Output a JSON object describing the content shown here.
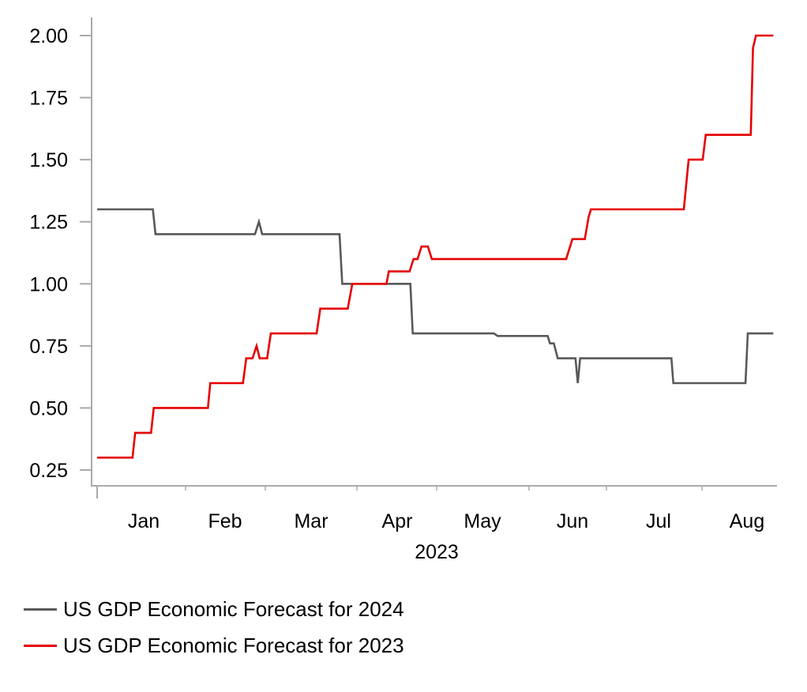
{
  "chart_data": {
    "type": "line",
    "title": "",
    "xlabel": "2023",
    "ylabel": "",
    "ylim": [
      0.25,
      2.0
    ],
    "yticks": [
      "2.00",
      "1.75",
      "1.50",
      "1.25",
      "1.00",
      "0.75",
      "0.50",
      "0.25"
    ],
    "ytick_values": [
      2.0,
      1.75,
      1.5,
      1.25,
      1.0,
      0.75,
      0.5,
      0.25
    ],
    "x_unit": "months since Jan 1 2023",
    "xlim": [
      0,
      7.95
    ],
    "month_boundaries": [
      0,
      1,
      2,
      3,
      4,
      5,
      6,
      7
    ],
    "xtick_labels": [
      "Jan",
      "Feb",
      "Mar",
      "Apr",
      "May",
      "Jun",
      "Jul",
      "Aug"
    ],
    "x_group_label": "2023",
    "grid": false,
    "legend_position": "bottom-left",
    "series": [
      {
        "name": "US GDP Economic Forecast for 2024",
        "color": "#595959",
        "points": [
          [
            0.0,
            1.3
          ],
          [
            0.63,
            1.3
          ],
          [
            0.66,
            1.2
          ],
          [
            1.87,
            1.2
          ],
          [
            1.92,
            1.25
          ],
          [
            1.96,
            1.2
          ],
          [
            2.81,
            1.2
          ],
          [
            2.84,
            1.0
          ],
          [
            3.67,
            1.0
          ],
          [
            3.7,
            0.8
          ],
          [
            4.62,
            0.8
          ],
          [
            4.66,
            0.79
          ],
          [
            5.24,
            0.79
          ],
          [
            5.27,
            0.76
          ],
          [
            5.32,
            0.76
          ],
          [
            5.37,
            0.7
          ],
          [
            5.6,
            0.7
          ],
          [
            5.63,
            0.6
          ],
          [
            5.66,
            0.7
          ],
          [
            6.68,
            0.7
          ],
          [
            6.7,
            0.6
          ],
          [
            7.58,
            0.6
          ],
          [
            7.61,
            0.8
          ],
          [
            7.95,
            0.8
          ]
        ]
      },
      {
        "name": "US GDP Economic Forecast for 2023",
        "color": "#e60000",
        "points": [
          [
            0.0,
            0.3
          ],
          [
            0.4,
            0.3
          ],
          [
            0.43,
            0.4
          ],
          [
            0.61,
            0.4
          ],
          [
            0.64,
            0.5
          ],
          [
            1.28,
            0.5
          ],
          [
            1.31,
            0.6
          ],
          [
            1.72,
            0.6
          ],
          [
            1.76,
            0.7
          ],
          [
            1.84,
            0.7
          ],
          [
            1.89,
            0.75
          ],
          [
            1.93,
            0.7
          ],
          [
            2.02,
            0.7
          ],
          [
            2.06,
            0.8
          ],
          [
            2.56,
            0.8
          ],
          [
            2.6,
            0.9
          ],
          [
            2.9,
            0.9
          ],
          [
            2.95,
            1.0
          ],
          [
            3.37,
            1.0
          ],
          [
            3.4,
            1.05
          ],
          [
            3.66,
            1.05
          ],
          [
            3.71,
            1.1
          ],
          [
            3.76,
            1.1
          ],
          [
            3.81,
            1.15
          ],
          [
            3.89,
            1.15
          ],
          [
            3.94,
            1.1
          ],
          [
            5.48,
            1.1
          ],
          [
            5.56,
            1.18
          ],
          [
            5.72,
            1.18
          ],
          [
            5.77,
            1.27
          ],
          [
            5.8,
            1.3
          ],
          [
            6.81,
            1.3
          ],
          [
            6.86,
            1.5
          ],
          [
            7.01,
            1.5
          ],
          [
            7.05,
            1.6
          ],
          [
            7.65,
            1.6
          ],
          [
            7.68,
            1.95
          ],
          [
            7.72,
            2.0
          ],
          [
            7.95,
            2.0
          ]
        ]
      }
    ]
  },
  "legend": {
    "items": [
      {
        "label": "US GDP Economic Forecast for 2024",
        "color": "#595959"
      },
      {
        "label": "US GDP Economic Forecast for 2023",
        "color": "#e60000"
      }
    ]
  }
}
